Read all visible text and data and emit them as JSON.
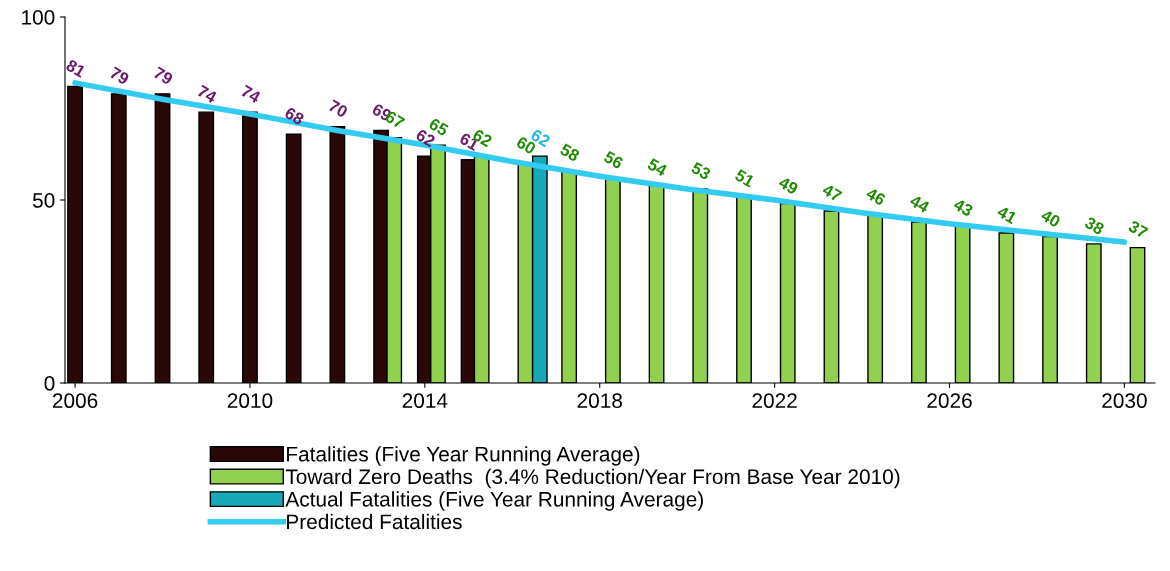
{
  "chart_data": {
    "type": "bar",
    "xlim": [
      2005.77,
      2030.7
    ],
    "xticks": [
      2006,
      2010,
      2014,
      2018,
      2022,
      2026,
      2030
    ],
    "ylim": [
      0,
      100
    ],
    "yticks": [
      0,
      50,
      100
    ],
    "grid": false,
    "legend": "bottom",
    "data_labels": true,
    "series": [
      {
        "name": "Fatalities (Five Year Running Average)",
        "color": "#2b0808",
        "x": [
          2006,
          2007,
          2008,
          2009,
          2010,
          2011,
          2012,
          2013,
          2014,
          2015
        ],
        "values": [
          81,
          79,
          79,
          74,
          74,
          68,
          70,
          69,
          62,
          61
        ]
      },
      {
        "name": "Toward Zero Deaths  (3.4% Reduction/Year From Base Year 2010)",
        "color": "#92d050",
        "x": [
          2013.3,
          2014.3,
          2015.3,
          2016.3,
          2017.3,
          2018.3,
          2019.3,
          2020.3,
          2021.3,
          2022.3,
          2023.3,
          2024.3,
          2025.3,
          2026.3,
          2027.3,
          2028.3,
          2029.3,
          2030.3
        ],
        "values": [
          67,
          65,
          62,
          60,
          58,
          56,
          54,
          53,
          51,
          49,
          47,
          46,
          44,
          43,
          41,
          40,
          38,
          37
        ]
      },
      {
        "name": "Actual Fatalities (Five Year Running Average)",
        "color": "#17a9b8",
        "x": [
          2016.63
        ],
        "values": [
          62
        ]
      },
      {
        "name": "Predicted Fatalities",
        "type": "line",
        "color": "#33ccf0",
        "data_labels": false,
        "x": [
          2006,
          2008,
          2010,
          2012,
          2014,
          2016,
          2018,
          2020,
          2022,
          2024,
          2026,
          2028,
          2030
        ],
        "values": [
          82,
          77.5,
          73.5,
          69,
          65,
          60.5,
          56.5,
          53,
          50,
          46.5,
          43.5,
          41,
          38.5
        ]
      }
    ]
  }
}
